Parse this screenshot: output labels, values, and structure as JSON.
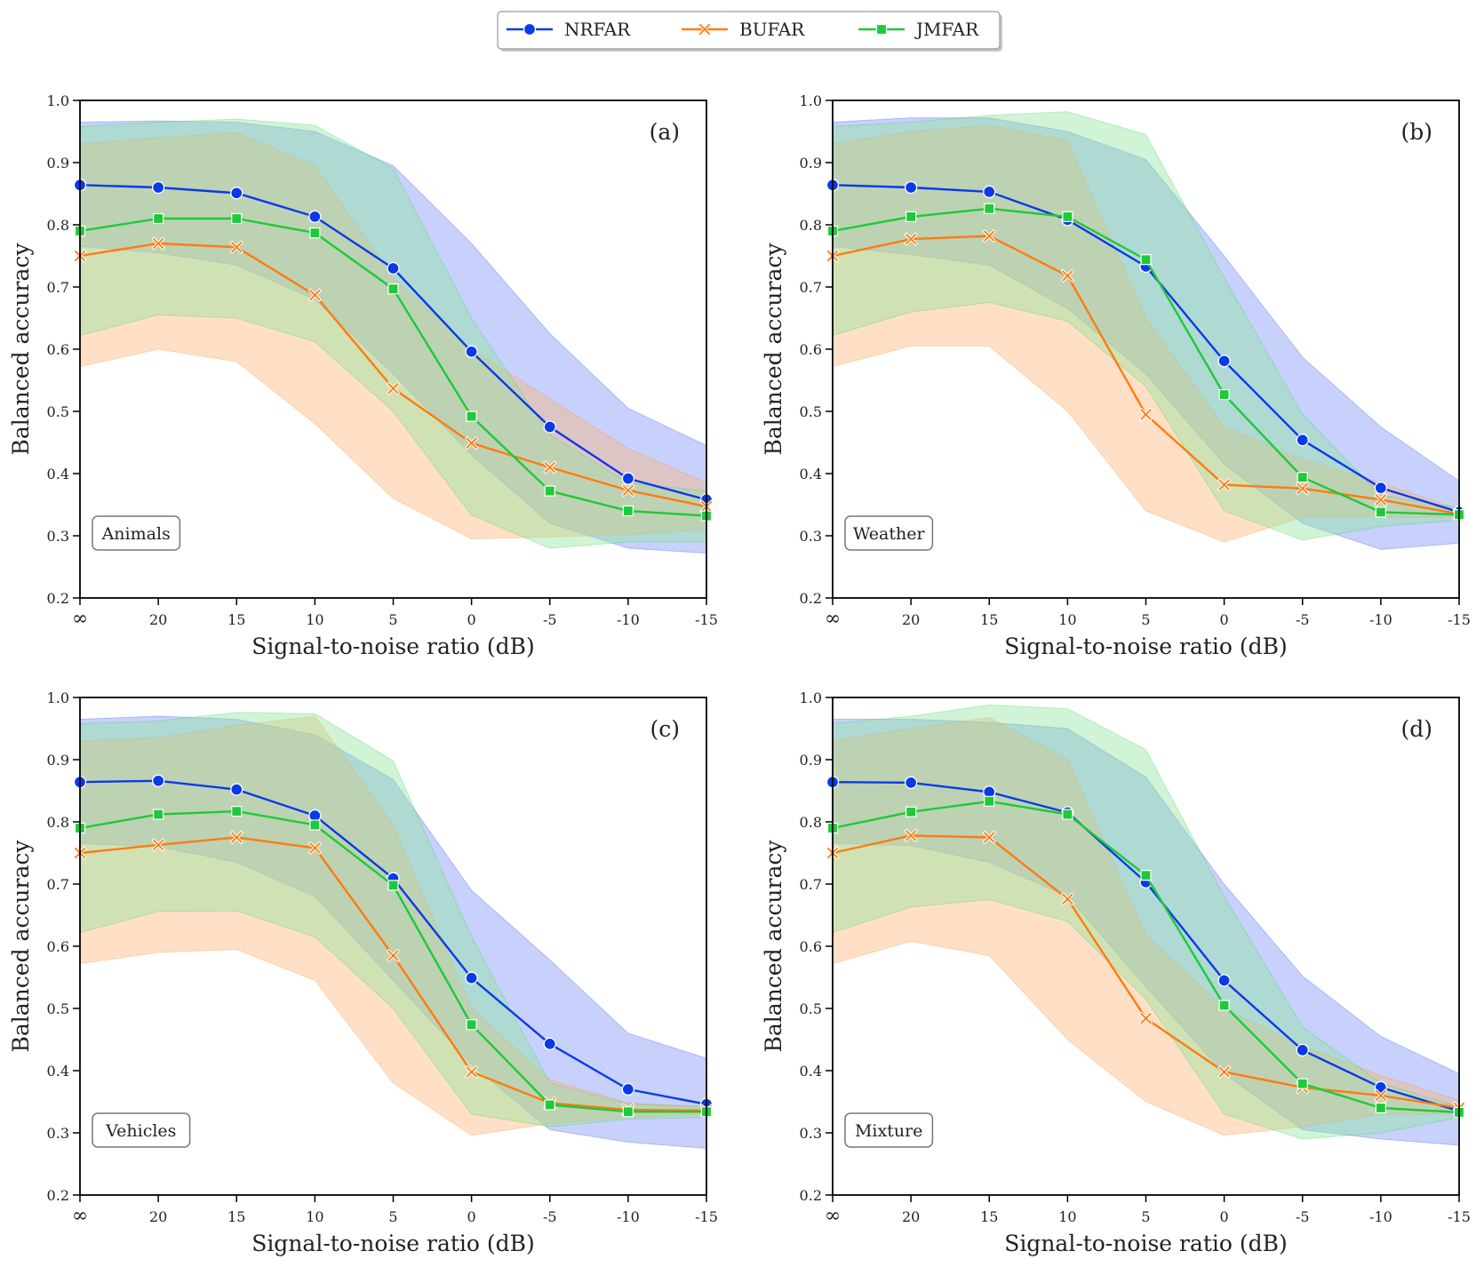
{
  "legend": {
    "entries": [
      {
        "name": "NRFAR",
        "color": "#0a3ae8",
        "marker": "circle"
      },
      {
        "name": "BUFAR",
        "color": "#ff7b10",
        "marker": "x"
      },
      {
        "name": "JMFAR",
        "color": "#1ec93a",
        "marker": "square"
      }
    ]
  },
  "colors": {
    "NRFAR": "#0a3ae8",
    "BUFAR": "#ff7b10",
    "JMFAR": "#1ec93a",
    "NRFAR_band": "#6b86f5",
    "BUFAR_band": "#ffb47a",
    "JMFAR_band": "#8fe59a"
  },
  "chart_data": [
    {
      "type": "line",
      "panel": "(a)",
      "label": "Animals",
      "xlabel": "Signal-to-noise ratio (dB)",
      "ylabel": "Balanced accuracy",
      "categories": [
        "∞",
        "20",
        "15",
        "10",
        "5",
        "0",
        "-5",
        "-10",
        "-15"
      ],
      "ylim": [
        0.2,
        1.0
      ],
      "yticks": [
        "0.2",
        "0.3",
        "0.4",
        "0.5",
        "0.6",
        "0.7",
        "0.8",
        "0.9",
        "1.0"
      ],
      "series": [
        {
          "name": "NRFAR",
          "values": [
            0.864,
            0.86,
            0.851,
            0.813,
            0.73,
            0.596,
            0.475,
            0.392,
            0.358
          ],
          "lower": [
            0.765,
            0.755,
            0.735,
            0.68,
            0.56,
            0.43,
            0.32,
            0.28,
            0.272
          ],
          "upper": [
            0.965,
            0.967,
            0.965,
            0.95,
            0.895,
            0.77,
            0.625,
            0.505,
            0.445
          ]
        },
        {
          "name": "BUFAR",
          "values": [
            0.75,
            0.77,
            0.764,
            0.687,
            0.537,
            0.449,
            0.41,
            0.373,
            0.347
          ],
          "lower": [
            0.572,
            0.6,
            0.58,
            0.48,
            0.36,
            0.295,
            0.298,
            0.302,
            0.31
          ],
          "upper": [
            0.93,
            0.94,
            0.948,
            0.895,
            0.715,
            0.6,
            0.52,
            0.44,
            0.385
          ]
        },
        {
          "name": "JMFAR",
          "values": [
            0.79,
            0.81,
            0.81,
            0.787,
            0.697,
            0.492,
            0.372,
            0.34,
            0.332
          ],
          "lower": [
            0.622,
            0.655,
            0.65,
            0.612,
            0.5,
            0.333,
            0.28,
            0.29,
            0.29
          ],
          "upper": [
            0.958,
            0.965,
            0.97,
            0.96,
            0.89,
            0.65,
            0.462,
            0.385,
            0.372
          ]
        }
      ]
    },
    {
      "type": "line",
      "panel": "(b)",
      "label": "Weather",
      "xlabel": "Signal-to-noise ratio (dB)",
      "ylabel": "Balanced accuracy",
      "categories": [
        "∞",
        "20",
        "15",
        "10",
        "5",
        "0",
        "-5",
        "-10",
        "-15"
      ],
      "ylim": [
        0.2,
        1.0
      ],
      "yticks": [
        "0.2",
        "0.3",
        "0.4",
        "0.5",
        "0.6",
        "0.7",
        "0.8",
        "0.9",
        "1.0"
      ],
      "series": [
        {
          "name": "NRFAR",
          "values": [
            0.864,
            0.86,
            0.853,
            0.808,
            0.733,
            0.581,
            0.454,
            0.377,
            0.338
          ],
          "lower": [
            0.765,
            0.752,
            0.735,
            0.665,
            0.56,
            0.415,
            0.32,
            0.278,
            0.288
          ],
          "upper": [
            0.965,
            0.972,
            0.972,
            0.95,
            0.905,
            0.75,
            0.587,
            0.475,
            0.388
          ]
        },
        {
          "name": "BUFAR",
          "values": [
            0.75,
            0.777,
            0.782,
            0.718,
            0.495,
            0.382,
            0.376,
            0.358,
            0.335
          ],
          "lower": [
            0.572,
            0.605,
            0.605,
            0.5,
            0.34,
            0.29,
            0.33,
            0.33,
            0.33
          ],
          "upper": [
            0.93,
            0.95,
            0.96,
            0.935,
            0.65,
            0.475,
            0.422,
            0.385,
            0.342
          ]
        },
        {
          "name": "JMFAR",
          "values": [
            0.79,
            0.813,
            0.826,
            0.813,
            0.744,
            0.527,
            0.394,
            0.338,
            0.334
          ],
          "lower": [
            0.622,
            0.66,
            0.675,
            0.645,
            0.54,
            0.34,
            0.293,
            0.315,
            0.325
          ],
          "upper": [
            0.958,
            0.965,
            0.976,
            0.982,
            0.945,
            0.715,
            0.495,
            0.365,
            0.345
          ]
        }
      ]
    },
    {
      "type": "line",
      "panel": "(c)",
      "label": "Vehicles",
      "xlabel": "Signal-to-noise ratio (dB)",
      "ylabel": "Balanced accuracy",
      "categories": [
        "∞",
        "20",
        "15",
        "10",
        "5",
        "0",
        "-5",
        "-10",
        "-15"
      ],
      "ylim": [
        0.2,
        1.0
      ],
      "yticks": [
        "0.2",
        "0.3",
        "0.4",
        "0.5",
        "0.6",
        "0.7",
        "0.8",
        "0.9",
        "1.0"
      ],
      "series": [
        {
          "name": "NRFAR",
          "values": [
            0.864,
            0.866,
            0.852,
            0.81,
            0.709,
            0.549,
            0.443,
            0.37,
            0.346
          ],
          "lower": [
            0.765,
            0.76,
            0.735,
            0.68,
            0.545,
            0.41,
            0.305,
            0.285,
            0.275
          ],
          "upper": [
            0.965,
            0.97,
            0.965,
            0.94,
            0.868,
            0.69,
            0.578,
            0.46,
            0.42
          ]
        },
        {
          "name": "BUFAR",
          "values": [
            0.75,
            0.763,
            0.775,
            0.758,
            0.585,
            0.398,
            0.348,
            0.337,
            0.336
          ],
          "lower": [
            0.572,
            0.59,
            0.595,
            0.545,
            0.38,
            0.296,
            0.315,
            0.325,
            0.33
          ],
          "upper": [
            0.93,
            0.935,
            0.955,
            0.97,
            0.795,
            0.5,
            0.385,
            0.348,
            0.342
          ]
        },
        {
          "name": "JMFAR",
          "values": [
            0.79,
            0.812,
            0.817,
            0.795,
            0.698,
            0.474,
            0.345,
            0.334,
            0.334
          ],
          "lower": [
            0.622,
            0.656,
            0.657,
            0.615,
            0.5,
            0.33,
            0.31,
            0.322,
            0.325
          ],
          "upper": [
            0.958,
            0.962,
            0.976,
            0.974,
            0.898,
            0.615,
            0.38,
            0.346,
            0.342
          ]
        }
      ]
    },
    {
      "type": "line",
      "panel": "(d)",
      "label": "Mixture",
      "xlabel": "Signal-to-noise ratio (dB)",
      "ylabel": "Balanced accuracy",
      "categories": [
        "∞",
        "20",
        "15",
        "10",
        "5",
        "0",
        "-5",
        "-10",
        "-15"
      ],
      "ylim": [
        0.2,
        1.0
      ],
      "yticks": [
        "0.2",
        "0.3",
        "0.4",
        "0.5",
        "0.6",
        "0.7",
        "0.8",
        "0.9",
        "1.0"
      ],
      "series": [
        {
          "name": "NRFAR",
          "values": [
            0.864,
            0.863,
            0.848,
            0.815,
            0.703,
            0.545,
            0.433,
            0.373,
            0.335
          ],
          "lower": [
            0.765,
            0.762,
            0.735,
            0.68,
            0.535,
            0.395,
            0.305,
            0.29,
            0.28
          ],
          "upper": [
            0.965,
            0.965,
            0.96,
            0.95,
            0.872,
            0.7,
            0.552,
            0.455,
            0.395
          ]
        },
        {
          "name": "BUFAR",
          "values": [
            0.75,
            0.778,
            0.775,
            0.676,
            0.484,
            0.398,
            0.373,
            0.36,
            0.34
          ],
          "lower": [
            0.572,
            0.608,
            0.585,
            0.45,
            0.35,
            0.296,
            0.31,
            0.33,
            0.33
          ],
          "upper": [
            0.93,
            0.95,
            0.968,
            0.9,
            0.618,
            0.5,
            0.44,
            0.392,
            0.352
          ]
        },
        {
          "name": "JMFAR",
          "values": [
            0.79,
            0.816,
            0.833,
            0.812,
            0.714,
            0.505,
            0.379,
            0.34,
            0.333
          ],
          "lower": [
            0.622,
            0.663,
            0.675,
            0.64,
            0.515,
            0.33,
            0.29,
            0.3,
            0.325
          ],
          "upper": [
            0.958,
            0.97,
            0.988,
            0.982,
            0.916,
            0.68,
            0.47,
            0.38,
            0.342
          ]
        }
      ]
    }
  ]
}
